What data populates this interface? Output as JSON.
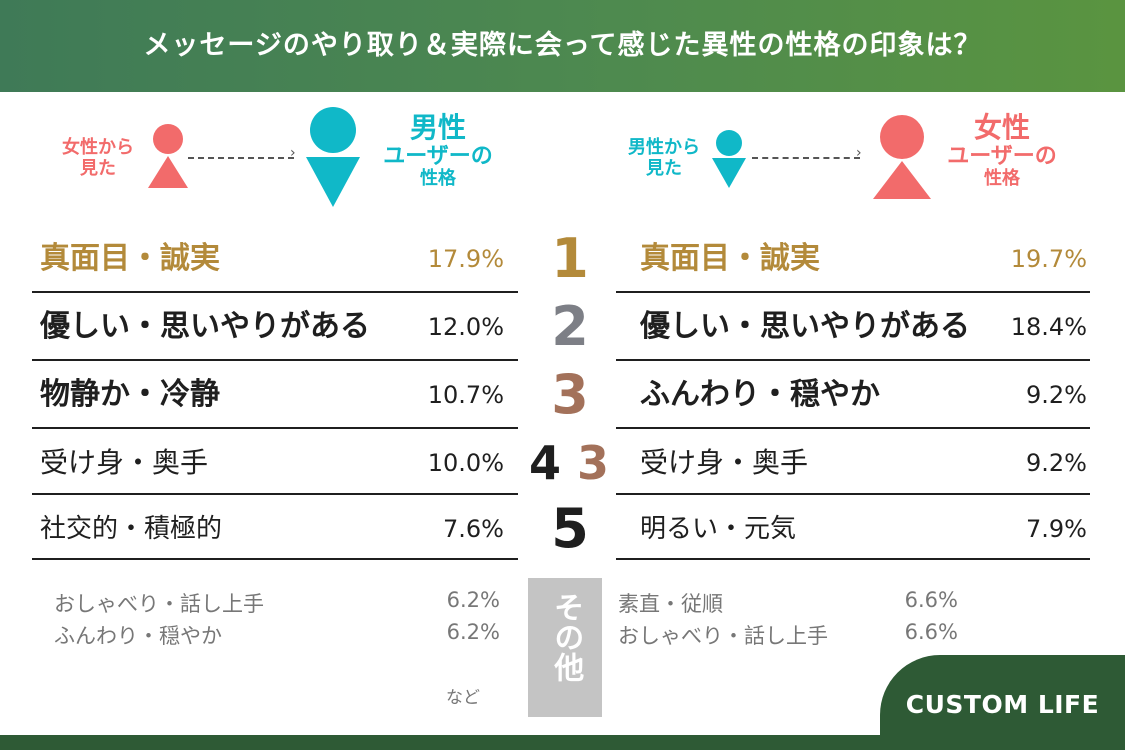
{
  "header": {
    "title": "メッセージのやり取り＆実際に会って感じた異性の性格の印象は？"
  },
  "legend_left": {
    "viewer_caption_line1": "女性から",
    "viewer_caption_line2": "見た",
    "target_caption_line1": "男性",
    "target_caption_line2": "ユーザーの",
    "target_caption_line3": "性格"
  },
  "legend_right": {
    "viewer_caption_line1": "男性から",
    "viewer_caption_line2": "見た",
    "target_caption_line1": "女性",
    "target_caption_line2": "ユーザーの",
    "target_caption_line3": "性格"
  },
  "colors": {
    "female": "#f26b6b",
    "male": "#10b8c8",
    "rank1": "#b38a3a",
    "rank2": "#7d7f86",
    "rank3": "#a3715a",
    "dark": "#1f1f1f",
    "header": "#4e8a4f"
  },
  "chart_data": {
    "type": "table",
    "title": "メッセージのやり取り＆実際に会って感じた異性の性格の印象は？",
    "columns": [
      "男性ユーザーの性格（女性から見た）",
      "女性ユーザーの性格（男性から見た）"
    ],
    "rows": [
      {
        "left_rank": "1",
        "left_label": "真面目・誠実",
        "left_value": "17.9%",
        "right_rank": "1",
        "right_label": "真面目・誠実",
        "right_value": "19.7%"
      },
      {
        "left_rank": "2",
        "left_label": "優しい・思いやりがある",
        "left_value": "12.0%",
        "right_rank": "2",
        "right_label": "優しい・思いやりがある",
        "right_value": "18.4%"
      },
      {
        "left_rank": "3",
        "left_label": "物静か・冷静",
        "left_value": "10.7%",
        "right_rank": "3",
        "right_label": "ふんわり・穏やか",
        "right_value": "9.2%"
      },
      {
        "left_rank": "4",
        "left_label": "受け身・奥手",
        "left_value": "10.0%",
        "right_rank": "3",
        "right_label": "受け身・奥手",
        "right_value": "9.2%"
      },
      {
        "left_rank": "5",
        "left_label": "社交的・積極的",
        "left_value": "7.6%",
        "right_rank": "5",
        "right_label": "明るい・元気",
        "right_value": "7.9%"
      }
    ],
    "others_label": "その他",
    "others_left": [
      {
        "label": "おしゃべり・話し上手",
        "value": "6.2%"
      },
      {
        "label": "ふんわり・穏やか",
        "value": "6.2%"
      }
    ],
    "others_left_note": "など",
    "others_right": [
      {
        "label": "素直・従順",
        "value": "6.6%"
      },
      {
        "label": "おしゃべり・話し上手",
        "value": "6.6%"
      }
    ]
  },
  "brand": {
    "name": "CUSTOM LIFE"
  }
}
